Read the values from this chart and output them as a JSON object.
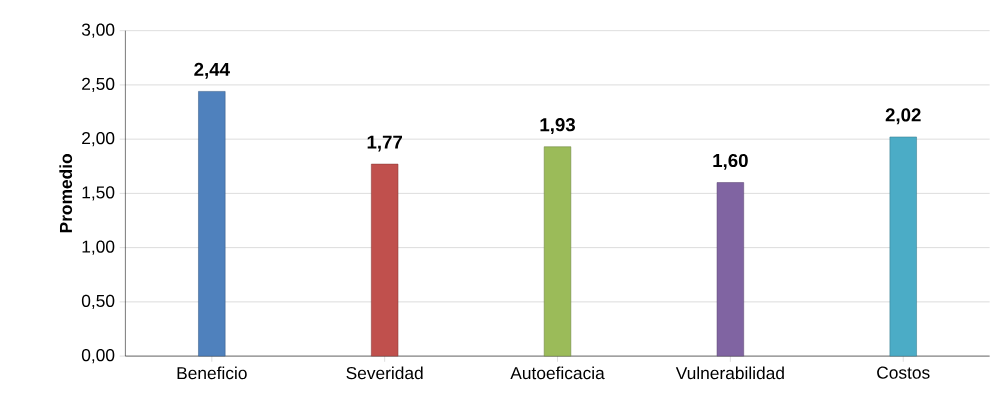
{
  "chart_data": {
    "type": "bar",
    "ylabel": "Promedio",
    "categories": [
      "Beneficio",
      "Severidad",
      "Autoeficacia",
      "Vulnerabilidad",
      "Costos"
    ],
    "values": [
      2.44,
      1.77,
      1.93,
      1.6,
      2.02
    ],
    "value_labels": [
      "2,44",
      "1,77",
      "1,93",
      "1,60",
      "2,02"
    ],
    "colors": [
      "#4f81bd",
      "#c0504d",
      "#9bbb59",
      "#8064a2",
      "#4bacc6"
    ],
    "ylim": [
      0,
      3
    ],
    "yticks": [
      {
        "value": 0,
        "label": "0,00"
      },
      {
        "value": 0.5,
        "label": "0,50"
      },
      {
        "value": 1,
        "label": "1,00"
      },
      {
        "value": 1.5,
        "label": "1,50"
      },
      {
        "value": 2,
        "label": "2,00"
      },
      {
        "value": 2.5,
        "label": "2,50"
      },
      {
        "value": 3,
        "label": "3,00"
      }
    ],
    "grid": "y"
  }
}
